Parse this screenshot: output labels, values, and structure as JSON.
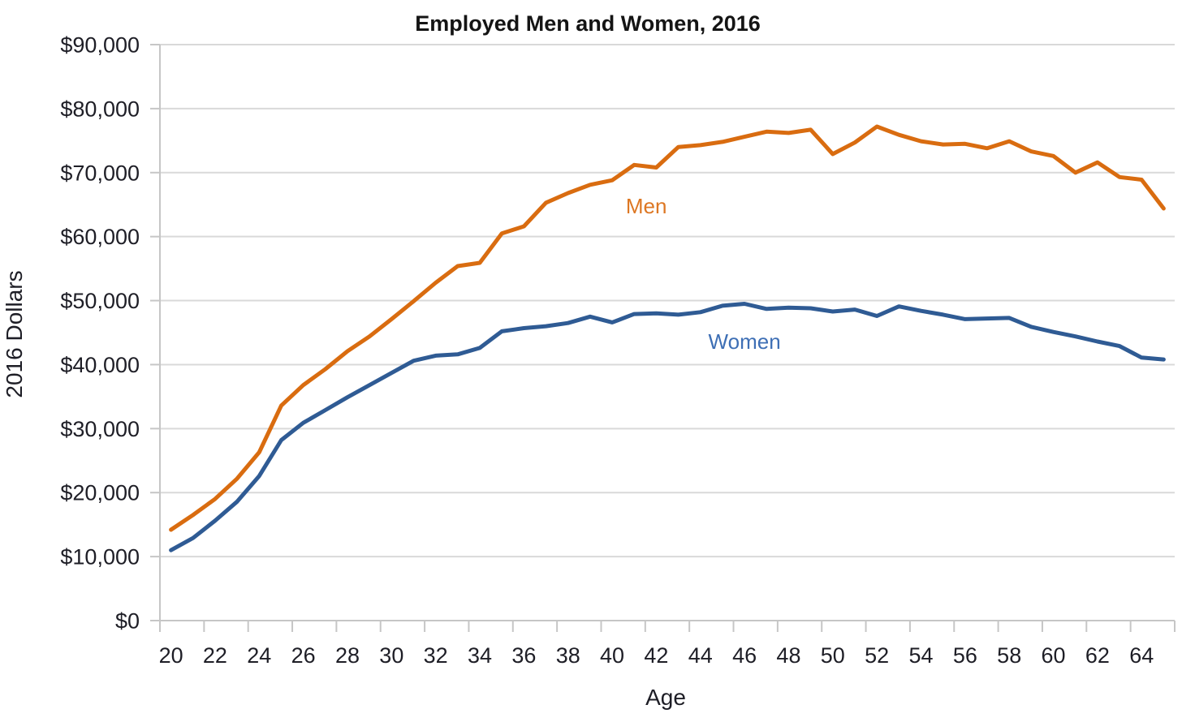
{
  "chart_data": {
    "type": "line",
    "title": "Employed Men and Women, 2016",
    "xlabel": "Age",
    "ylabel": "2016 Dollars",
    "x_start": 20,
    "x_end": 65,
    "ylim": [
      0,
      90000
    ],
    "ytick_step": 10000,
    "y_tick_labels": [
      "$0",
      "$10,000",
      "$20,000",
      "$30,000",
      "$40,000",
      "$50,000",
      "$60,000",
      "$70,000",
      "$80,000",
      "$90,000"
    ],
    "x_tick_labels": [
      "20",
      "22",
      "24",
      "26",
      "28",
      "30",
      "32",
      "34",
      "36",
      "38",
      "40",
      "42",
      "44",
      "46",
      "48",
      "50",
      "52",
      "54",
      "56",
      "58",
      "60",
      "62",
      "64"
    ],
    "grid": true,
    "legend_position": "inline-labels",
    "colors": {
      "grid": "#d9d9d9",
      "axis": "#c6c6c6",
      "text": "#1e1e26",
      "men_line": "#d96c10",
      "men_label": "#dd7723",
      "women_line": "#2f5b94",
      "women_label": "#3e6fb5"
    },
    "series": [
      {
        "name": "Men",
        "color": "#d96c10",
        "values": [
          14200,
          16500,
          19000,
          22200,
          26300,
          33600,
          36800,
          39300,
          42100,
          44400,
          47100,
          49900,
          52800,
          55400,
          55900,
          60500,
          61600,
          65300,
          66800,
          68100,
          68800,
          71200,
          70800,
          74000,
          74300,
          74800,
          75600,
          76400,
          76200,
          76700,
          72900,
          74700,
          77200,
          75900,
          74900,
          74400,
          74500,
          73800,
          74900,
          73300,
          72600,
          70000,
          71600,
          69300,
          68900,
          64400
        ]
      },
      {
        "name": "Women",
        "color": "#2f5b94",
        "values": [
          11000,
          12900,
          15600,
          18600,
          22600,
          28200,
          30900,
          32900,
          34900,
          36800,
          38700,
          40600,
          41400,
          41600,
          42600,
          45200,
          45700,
          46000,
          46500,
          47500,
          46600,
          47900,
          48000,
          47800,
          48200,
          49200,
          49500,
          48700,
          48900,
          48800,
          48300,
          48600,
          47600,
          49100,
          48400,
          47800,
          47100,
          47200,
          47300,
          45900,
          45100,
          44400,
          43600,
          42900,
          41100,
          40800
        ]
      }
    ],
    "annotations": [
      {
        "text": "Men",
        "age": 41.55,
        "value": 64800,
        "color": "#dd7723"
      },
      {
        "text": "Women",
        "age": 46.0,
        "value": 43600,
        "color": "#3e6fb5"
      }
    ]
  }
}
